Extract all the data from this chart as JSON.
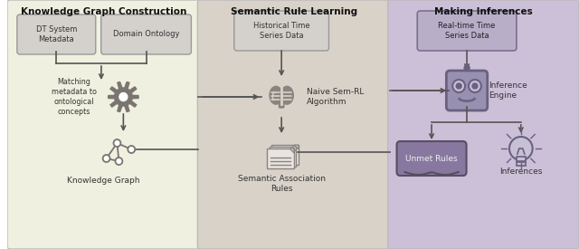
{
  "panel1_bg": "#f0f0e0",
  "panel2_bg": "#d8d2c8",
  "panel3_bg": "#ccc0d8",
  "panel_border": "#bbbbbb",
  "box_fill": "#d4d0cc",
  "box_border": "#999999",
  "box3_fill": "#b8aec8",
  "icon_color": "#7a7570",
  "arrow_color": "#555555",
  "title1": "Knowledge Graph Construction",
  "title2": "Semantic Rule Learning",
  "title3": "Making Inferences",
  "box1a": "DT System\nMetadata",
  "box1b": "Domain Ontology",
  "box2a": "Historical Time\nSeries Data",
  "box3a": "Real-time Time\nSeries Data",
  "label1": "Matching\nmetadata to\nontological\nconcepts",
  "label2": "Naive Sem-RL\nAlgorithm",
  "label3": "Inference\nEngine",
  "label4": "Knowledge Graph",
  "label5": "Semantic Association\nRules",
  "label6": "Unmet Rules",
  "label7": "Inferences",
  "unmet_fill": "#8878a0",
  "unmet_border": "#555060"
}
